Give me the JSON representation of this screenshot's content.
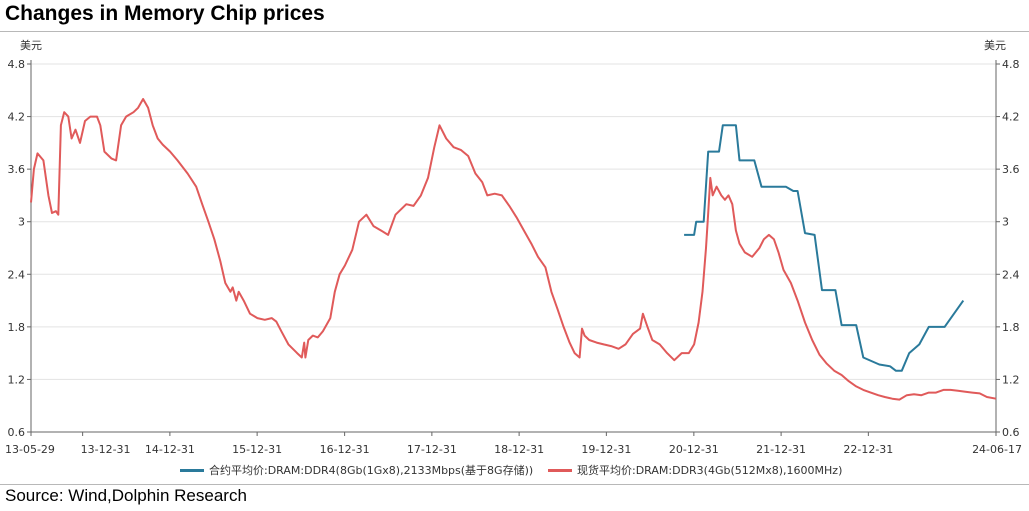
{
  "title": "Changes in Memory Chip prices",
  "source": "Source: Wind,Dolphin Research",
  "chart_data": {
    "type": "line",
    "y_unit_left": "美元",
    "y_unit_right": "美元",
    "ylim": [
      0.6,
      4.8
    ],
    "yticks": [
      "0.6",
      "1.2",
      "1.8",
      "2.4",
      "3",
      "3.6",
      "4.2",
      "4.8"
    ],
    "xlim": [
      "2013-05-29",
      "2024-06-17"
    ],
    "xticks": [
      {
        "label": "13-05-29",
        "date": "2013-05-29"
      },
      {
        "label": "13-12-31",
        "date": "2013-12-31"
      },
      {
        "label": "14-12-31",
        "date": "2014-12-31"
      },
      {
        "label": "15-12-31",
        "date": "2015-12-31"
      },
      {
        "label": "16-12-31",
        "date": "2016-12-31"
      },
      {
        "label": "17-12-31",
        "date": "2017-12-31"
      },
      {
        "label": "18-12-31",
        "date": "2018-12-31"
      },
      {
        "label": "19-12-31",
        "date": "2019-12-31"
      },
      {
        "label": "20-12-31",
        "date": "2020-12-31"
      },
      {
        "label": "21-12-31",
        "date": "2021-12-31"
      },
      {
        "label": "22-12-31",
        "date": "2022-12-31"
      },
      {
        "label": "24-06-17",
        "date": "2024-06-17"
      }
    ],
    "legend_position": "bottom",
    "series": [
      {
        "name": "合约平均价:DRAM:DDR4(8Gb(1Gx8),2133Mbps(基于8G存储))",
        "color": "#2a7a9b",
        "points": [
          [
            "2020-11-20",
            2.85
          ],
          [
            "2021-01-01",
            2.85
          ],
          [
            "2021-01-10",
            3.0
          ],
          [
            "2021-02-10",
            3.0
          ],
          [
            "2021-03-01",
            3.8
          ],
          [
            "2021-04-15",
            3.8
          ],
          [
            "2021-05-01",
            4.1
          ],
          [
            "2021-06-25",
            4.1
          ],
          [
            "2021-07-10",
            3.7
          ],
          [
            "2021-09-10",
            3.7
          ],
          [
            "2021-10-10",
            3.4
          ],
          [
            "2022-01-20",
            3.4
          ],
          [
            "2022-02-20",
            3.35
          ],
          [
            "2022-03-10",
            3.35
          ],
          [
            "2022-04-10",
            2.87
          ],
          [
            "2022-05-20",
            2.85
          ],
          [
            "2022-06-20",
            2.22
          ],
          [
            "2022-08-15",
            2.22
          ],
          [
            "2022-09-10",
            1.82
          ],
          [
            "2022-11-10",
            1.82
          ],
          [
            "2022-12-10",
            1.45
          ],
          [
            "2023-02-15",
            1.37
          ],
          [
            "2023-04-01",
            1.35
          ],
          [
            "2023-04-25",
            1.3
          ],
          [
            "2023-05-20",
            1.3
          ],
          [
            "2023-06-20",
            1.5
          ],
          [
            "2023-08-01",
            1.6
          ],
          [
            "2023-09-10",
            1.8
          ],
          [
            "2023-11-15",
            1.8
          ],
          [
            "2024-02-01",
            2.1
          ]
        ]
      },
      {
        "name": "现货平均价:DRAM:DDR3(4Gb(512Mx8),1600MHz)",
        "color": "#e05a5a",
        "points": [
          [
            "2013-05-29",
            3.22
          ],
          [
            "2013-06-10",
            3.6
          ],
          [
            "2013-06-25",
            3.78
          ],
          [
            "2013-07-20",
            3.7
          ],
          [
            "2013-08-10",
            3.3
          ],
          [
            "2013-08-25",
            3.1
          ],
          [
            "2013-09-10",
            3.12
          ],
          [
            "2013-09-20",
            3.08
          ],
          [
            "2013-10-01",
            4.1
          ],
          [
            "2013-10-15",
            4.25
          ],
          [
            "2013-11-01",
            4.2
          ],
          [
            "2013-11-15",
            3.95
          ],
          [
            "2013-12-01",
            4.05
          ],
          [
            "2013-12-20",
            3.9
          ],
          [
            "2014-01-10",
            4.15
          ],
          [
            "2014-02-01",
            4.2
          ],
          [
            "2014-03-01",
            4.2
          ],
          [
            "2014-03-15",
            4.1
          ],
          [
            "2014-04-01",
            3.8
          ],
          [
            "2014-05-01",
            3.72
          ],
          [
            "2014-05-20",
            3.7
          ],
          [
            "2014-06-10",
            4.1
          ],
          [
            "2014-07-01",
            4.2
          ],
          [
            "2014-08-01",
            4.25
          ],
          [
            "2014-08-20",
            4.3
          ],
          [
            "2014-09-10",
            4.4
          ],
          [
            "2014-10-01",
            4.3
          ],
          [
            "2014-10-20",
            4.1
          ],
          [
            "2014-11-10",
            3.95
          ],
          [
            "2014-12-01",
            3.88
          ],
          [
            "2015-01-01",
            3.8
          ],
          [
            "2015-02-01",
            3.7
          ],
          [
            "2015-03-15",
            3.55
          ],
          [
            "2015-04-20",
            3.4
          ],
          [
            "2015-05-15",
            3.2
          ],
          [
            "2015-06-10",
            3.0
          ],
          [
            "2015-07-05",
            2.8
          ],
          [
            "2015-07-30",
            2.55
          ],
          [
            "2015-08-20",
            2.3
          ],
          [
            "2015-09-10",
            2.2
          ],
          [
            "2015-09-20",
            2.25
          ],
          [
            "2015-10-05",
            2.1
          ],
          [
            "2015-10-15",
            2.2
          ],
          [
            "2015-11-05",
            2.1
          ],
          [
            "2015-12-01",
            1.95
          ],
          [
            "2016-01-01",
            1.9
          ],
          [
            "2016-02-01",
            1.88
          ],
          [
            "2016-03-01",
            1.9
          ],
          [
            "2016-03-20",
            1.86
          ],
          [
            "2016-04-10",
            1.75
          ],
          [
            "2016-05-10",
            1.6
          ],
          [
            "2016-06-15",
            1.5
          ],
          [
            "2016-07-05",
            1.45
          ],
          [
            "2016-07-15",
            1.62
          ],
          [
            "2016-07-20",
            1.45
          ],
          [
            "2016-08-01",
            1.65
          ],
          [
            "2016-08-20",
            1.7
          ],
          [
            "2016-09-10",
            1.68
          ],
          [
            "2016-10-01",
            1.75
          ],
          [
            "2016-11-01",
            1.9
          ],
          [
            "2016-11-20",
            2.2
          ],
          [
            "2016-12-10",
            2.4
          ],
          [
            "2017-01-01",
            2.5
          ],
          [
            "2017-02-01",
            2.68
          ],
          [
            "2017-03-01",
            3.0
          ],
          [
            "2017-04-01",
            3.08
          ],
          [
            "2017-05-01",
            2.95
          ],
          [
            "2017-06-01",
            2.9
          ],
          [
            "2017-07-01",
            2.85
          ],
          [
            "2017-08-01",
            3.08
          ],
          [
            "2017-09-15",
            3.2
          ],
          [
            "2017-10-15",
            3.18
          ],
          [
            "2017-11-15",
            3.3
          ],
          [
            "2017-12-15",
            3.5
          ],
          [
            "2018-01-10",
            3.85
          ],
          [
            "2018-02-01",
            4.1
          ],
          [
            "2018-03-01",
            3.95
          ],
          [
            "2018-04-01",
            3.85
          ],
          [
            "2018-05-01",
            3.82
          ],
          [
            "2018-06-01",
            3.75
          ],
          [
            "2018-07-01",
            3.55
          ],
          [
            "2018-07-30",
            3.45
          ],
          [
            "2018-08-20",
            3.3
          ],
          [
            "2018-09-20",
            3.32
          ],
          [
            "2018-10-20",
            3.3
          ],
          [
            "2018-11-20",
            3.18
          ],
          [
            "2018-12-20",
            3.05
          ],
          [
            "2019-01-20",
            2.9
          ],
          [
            "2019-02-20",
            2.75
          ],
          [
            "2019-03-20",
            2.6
          ],
          [
            "2019-04-20",
            2.48
          ],
          [
            "2019-05-15",
            2.2
          ],
          [
            "2019-06-10",
            2.0
          ],
          [
            "2019-07-05",
            1.8
          ],
          [
            "2019-07-30",
            1.62
          ],
          [
            "2019-08-20",
            1.5
          ],
          [
            "2019-09-10",
            1.45
          ],
          [
            "2019-09-20",
            1.78
          ],
          [
            "2019-10-01",
            1.7
          ],
          [
            "2019-10-20",
            1.65
          ],
          [
            "2019-11-20",
            1.62
          ],
          [
            "2019-12-20",
            1.6
          ],
          [
            "2020-01-20",
            1.58
          ],
          [
            "2020-02-20",
            1.55
          ],
          [
            "2020-03-20",
            1.6
          ],
          [
            "2020-04-20",
            1.72
          ],
          [
            "2020-05-20",
            1.78
          ],
          [
            "2020-06-01",
            1.95
          ],
          [
            "2020-06-20",
            1.8
          ],
          [
            "2020-07-10",
            1.65
          ],
          [
            "2020-08-10",
            1.6
          ],
          [
            "2020-09-10",
            1.5
          ],
          [
            "2020-10-10",
            1.42
          ],
          [
            "2020-11-10",
            1.5
          ],
          [
            "2020-12-10",
            1.5
          ],
          [
            "2021-01-01",
            1.6
          ],
          [
            "2021-01-20",
            1.85
          ],
          [
            "2021-02-05",
            2.2
          ],
          [
            "2021-02-20",
            2.7
          ],
          [
            "2021-03-01",
            3.1
          ],
          [
            "2021-03-10",
            3.5
          ],
          [
            "2021-03-20",
            3.3
          ],
          [
            "2021-04-05",
            3.4
          ],
          [
            "2021-04-25",
            3.3
          ],
          [
            "2021-05-10",
            3.25
          ],
          [
            "2021-05-25",
            3.3
          ],
          [
            "2021-06-10",
            3.2
          ],
          [
            "2021-06-25",
            2.9
          ],
          [
            "2021-07-10",
            2.75
          ],
          [
            "2021-08-01",
            2.65
          ],
          [
            "2021-09-01",
            2.6
          ],
          [
            "2021-10-01",
            2.7
          ],
          [
            "2021-10-20",
            2.8
          ],
          [
            "2021-11-10",
            2.85
          ],
          [
            "2021-12-01",
            2.8
          ],
          [
            "2021-12-20",
            2.65
          ],
          [
            "2022-01-10",
            2.45
          ],
          [
            "2022-02-10",
            2.3
          ],
          [
            "2022-03-10",
            2.1
          ],
          [
            "2022-04-10",
            1.85
          ],
          [
            "2022-05-10",
            1.65
          ],
          [
            "2022-06-10",
            1.48
          ],
          [
            "2022-07-10",
            1.38
          ],
          [
            "2022-08-10",
            1.3
          ],
          [
            "2022-09-10",
            1.25
          ],
          [
            "2022-10-10",
            1.18
          ],
          [
            "2022-11-10",
            1.12
          ],
          [
            "2022-12-10",
            1.08
          ],
          [
            "2023-01-10",
            1.05
          ],
          [
            "2023-02-10",
            1.02
          ],
          [
            "2023-03-10",
            1.0
          ],
          [
            "2023-04-10",
            0.98
          ],
          [
            "2023-05-10",
            0.97
          ],
          [
            "2023-06-10",
            1.02
          ],
          [
            "2023-07-10",
            1.03
          ],
          [
            "2023-08-10",
            1.02
          ],
          [
            "2023-09-10",
            1.05
          ],
          [
            "2023-10-10",
            1.05
          ],
          [
            "2023-11-10",
            1.08
          ],
          [
            "2023-12-10",
            1.08
          ],
          [
            "2024-01-10",
            1.07
          ],
          [
            "2024-02-10",
            1.06
          ],
          [
            "2024-03-10",
            1.05
          ],
          [
            "2024-04-10",
            1.04
          ],
          [
            "2024-05-10",
            1.0
          ],
          [
            "2024-06-17",
            0.98
          ]
        ]
      }
    ]
  }
}
